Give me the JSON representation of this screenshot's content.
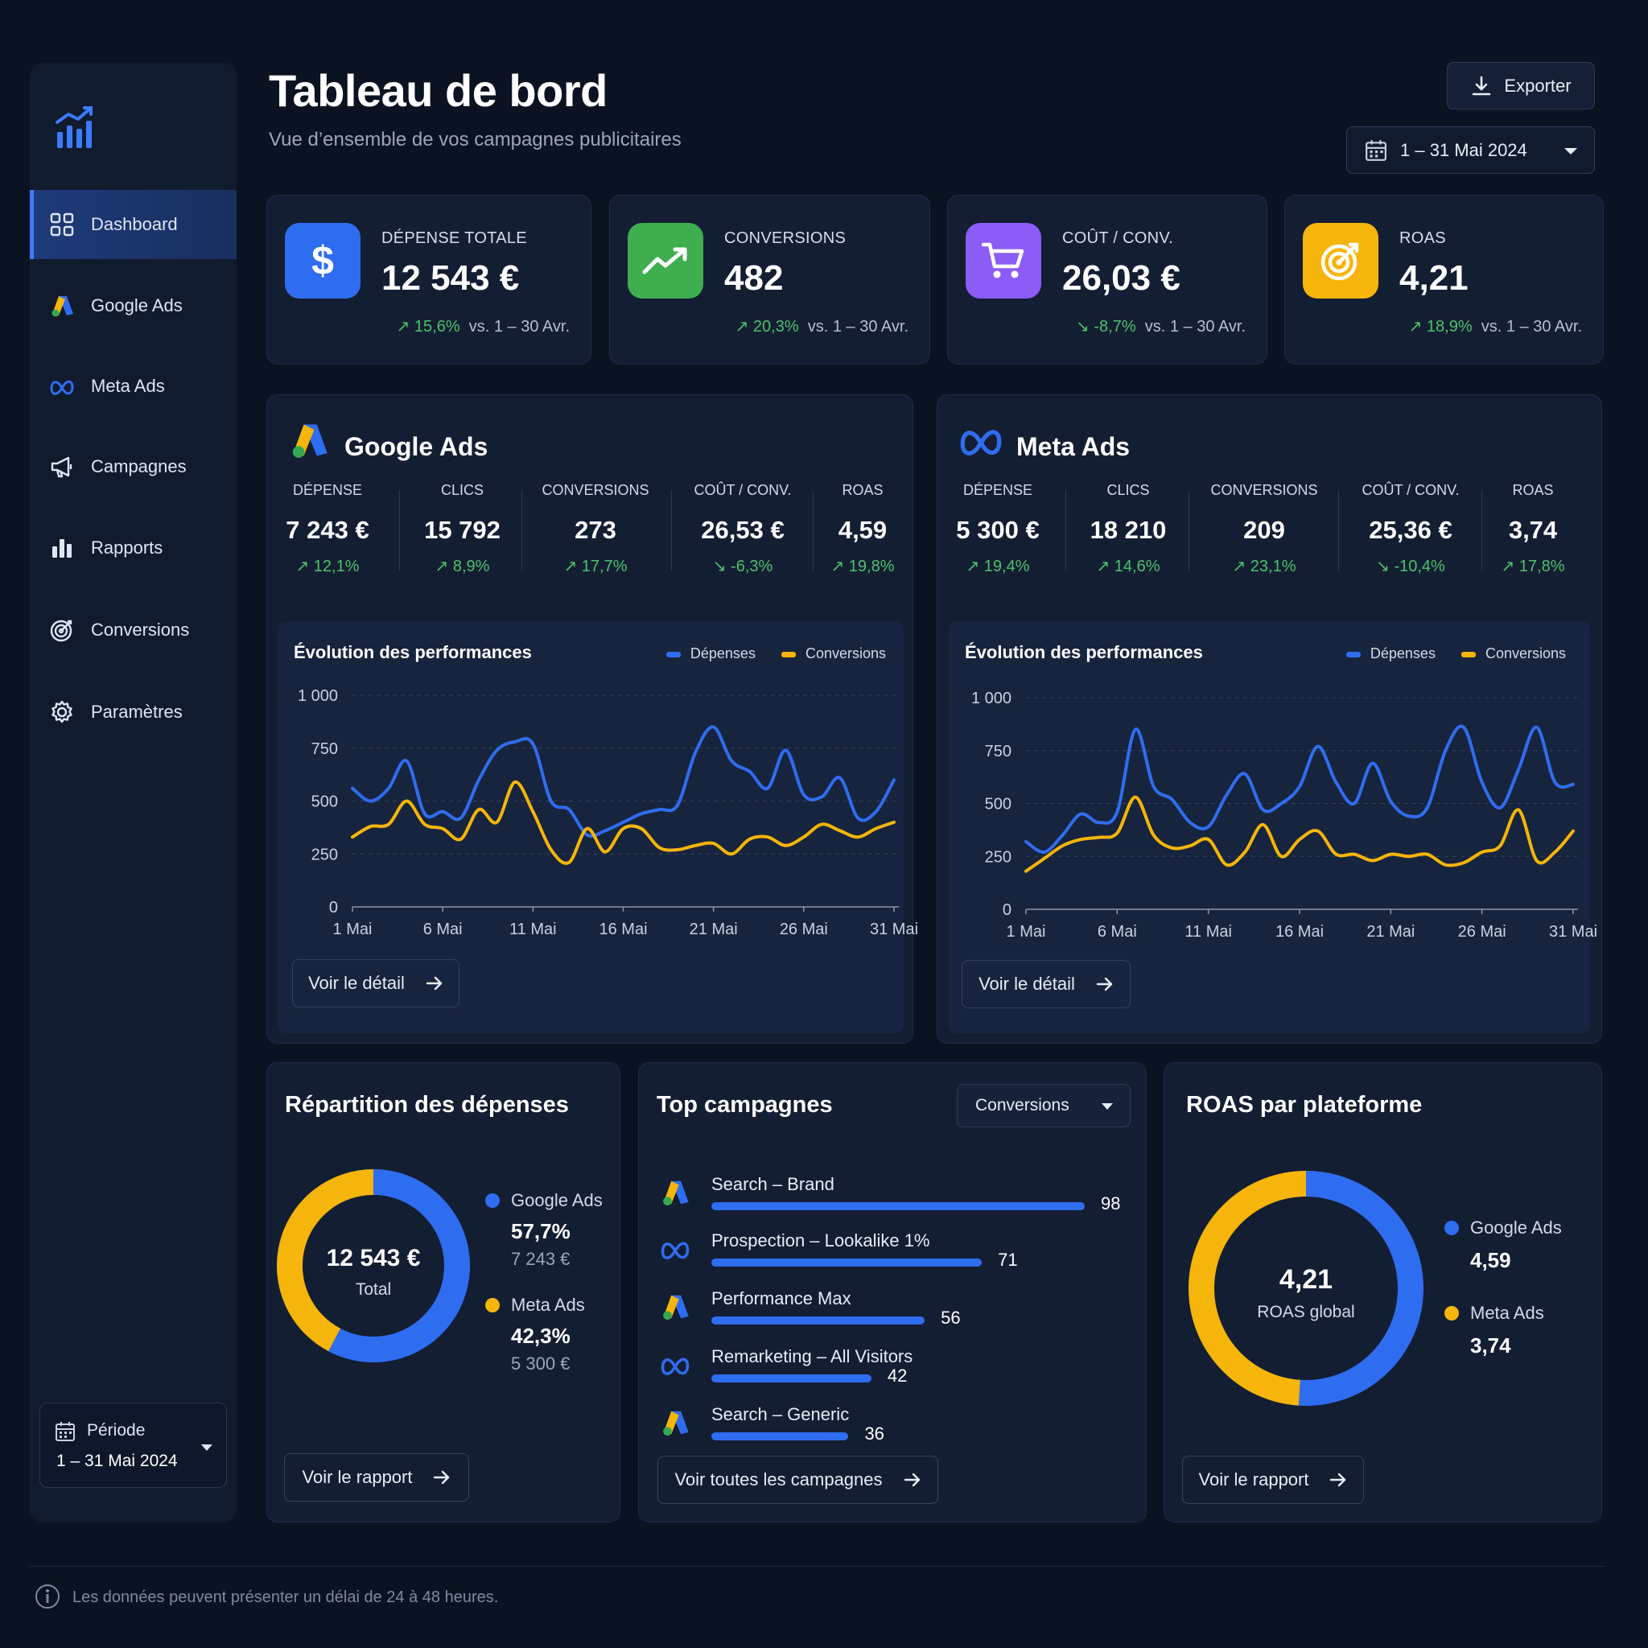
{
  "header": {
    "title": "Tableau de bord",
    "subtitle": "Vue d’ensemble de vos campagnes publicitaires",
    "export_label": "Exporter",
    "date_range": "1 – 31 Mai 2024"
  },
  "sidebar": {
    "items": [
      {
        "label": "Dashboard",
        "icon": "grid-icon",
        "active": true
      },
      {
        "label": "Google Ads",
        "icon": "google-ads-icon"
      },
      {
        "label": "Meta Ads",
        "icon": "meta-icon"
      },
      {
        "label": "Campagnes",
        "icon": "megaphone-icon"
      },
      {
        "label": "Rapports",
        "icon": "bar-chart-icon"
      },
      {
        "label": "Conversions",
        "icon": "target-icon"
      },
      {
        "label": "Paramètres",
        "icon": "gear-icon"
      }
    ],
    "period_label": "Période",
    "period_value": "1 – 31 Mai 2024"
  },
  "kpis": [
    {
      "label": "DÉPENSE TOTALE",
      "value": "12 543 €",
      "delta": "15,6%",
      "direction": "up",
      "compare": "vs. 1 – 30 Avr.",
      "icon": "dollar-icon",
      "color": "#2f6df0"
    },
    {
      "label": "CONVERSIONS",
      "value": "482",
      "delta": "20,3%",
      "direction": "up",
      "compare": "vs. 1 – 30 Avr.",
      "icon": "trend-up-icon",
      "color": "#3fae4f"
    },
    {
      "label": "COÛT / CONV.",
      "value": "26,03 €",
      "delta": "-8,7%",
      "direction": "down",
      "compare": "vs. 1 – 30 Avr.",
      "icon": "cart-icon",
      "color": "#8b5cf6"
    },
    {
      "label": "ROAS",
      "value": "4,21",
      "delta": "18,9%",
      "direction": "up",
      "compare": "vs. 1 – 30 Avr.",
      "icon": "target-icon",
      "color": "#f5b50a"
    }
  ],
  "google": {
    "title": "Google Ads",
    "metrics": [
      {
        "label": "DÉPENSE",
        "value": "7 243 €",
        "delta": "↗ 12,1%"
      },
      {
        "label": "CLICS",
        "value": "15 792",
        "delta": "↗ 8,9%"
      },
      {
        "label": "CONVERSIONS",
        "value": "273",
        "delta": "↗ 17,7%"
      },
      {
        "label": "COÛT / CONV.",
        "value": "26,53 €",
        "delta": "↘ -6,3%"
      },
      {
        "label": "ROAS",
        "value": "4,59",
        "delta": "↗ 19,8%"
      }
    ],
    "chart_title": "Évolution des performances",
    "button": "Voir le détail"
  },
  "meta": {
    "title": "Meta Ads",
    "metrics": [
      {
        "label": "DÉPENSE",
        "value": "5 300 €",
        "delta": "↗ 19,4%"
      },
      {
        "label": "CLICS",
        "value": "18 210",
        "delta": "↗ 14,6%"
      },
      {
        "label": "CONVERSIONS",
        "value": "209",
        "delta": "↗ 23,1%"
      },
      {
        "label": "COÛT / CONV.",
        "value": "25,36 €",
        "delta": "↘ -10,4%"
      },
      {
        "label": "ROAS",
        "value": "3,74",
        "delta": "↗ 17,8%"
      }
    ],
    "chart_title": "Évolution des performances",
    "button": "Voir le détail"
  },
  "chart_data": [
    {
      "type": "line",
      "title": "Évolution des performances",
      "x": [
        "1 Mai",
        "2 Mai",
        "3 Mai",
        "4 Mai",
        "5 Mai",
        "6 Mai",
        "7 Mai",
        "8 Mai",
        "9 Mai",
        "10 Mai",
        "11 Mai",
        "12 Mai",
        "13 Mai",
        "14 Mai",
        "15 Mai",
        "16 Mai",
        "17 Mai",
        "18 Mai",
        "19 Mai",
        "20 Mai",
        "21 Mai",
        "22 Mai",
        "23 Mai",
        "24 Mai",
        "25 Mai",
        "26 Mai",
        "27 Mai",
        "28 Mai",
        "29 Mai",
        "30 Mai",
        "31 Mai"
      ],
      "xticks": [
        "1 Mai",
        "6 Mai",
        "11 Mai",
        "16 Mai",
        "21 Mai",
        "26 Mai",
        "31 Mai"
      ],
      "yticks": [
        "0",
        "250",
        "500",
        "750",
        "1 000"
      ],
      "ylim": [
        0,
        1000
      ],
      "series": [
        {
          "name": "Dépenses",
          "color": "#2f6df0",
          "values": [
            560,
            500,
            560,
            690,
            440,
            450,
            420,
            600,
            740,
            780,
            770,
            500,
            460,
            340,
            360,
            400,
            440,
            460,
            480,
            730,
            850,
            690,
            640,
            560,
            740,
            530,
            520,
            610,
            420,
            450,
            600
          ]
        },
        {
          "name": "Conversions",
          "color": "#f5b50a",
          "values": [
            330,
            380,
            390,
            500,
            390,
            370,
            320,
            460,
            400,
            590,
            450,
            270,
            210,
            370,
            260,
            370,
            370,
            280,
            270,
            290,
            300,
            250,
            320,
            330,
            290,
            330,
            390,
            360,
            330,
            370,
            400
          ]
        }
      ]
    },
    {
      "type": "line",
      "title": "Évolution des performances",
      "x": [
        "1 Mai",
        "2 Mai",
        "3 Mai",
        "4 Mai",
        "5 Mai",
        "6 Mai",
        "7 Mai",
        "8 Mai",
        "9 Mai",
        "10 Mai",
        "11 Mai",
        "12 Mai",
        "13 Mai",
        "14 Mai",
        "15 Mai",
        "16 Mai",
        "17 Mai",
        "18 Mai",
        "19 Mai",
        "20 Mai",
        "21 Mai",
        "22 Mai",
        "23 Mai",
        "24 Mai",
        "25 Mai",
        "26 Mai",
        "27 Mai",
        "28 Mai",
        "29 Mai",
        "30 Mai",
        "31 Mai"
      ],
      "xticks": [
        "1 Mai",
        "6 Mai",
        "11 Mai",
        "16 Mai",
        "21 Mai",
        "26 Mai",
        "31 Mai"
      ],
      "yticks": [
        "0",
        "250",
        "500",
        "750",
        "1 000"
      ],
      "ylim": [
        0,
        1000
      ],
      "series": [
        {
          "name": "Dépenses",
          "color": "#2f6df0",
          "values": [
            320,
            270,
            350,
            450,
            410,
            460,
            850,
            580,
            520,
            410,
            390,
            540,
            640,
            470,
            500,
            580,
            770,
            600,
            500,
            690,
            510,
            440,
            480,
            750,
            860,
            600,
            480,
            660,
            860,
            600,
            590
          ]
        },
        {
          "name": "Conversions",
          "color": "#f5b50a",
          "values": [
            180,
            240,
            300,
            330,
            340,
            360,
            530,
            350,
            290,
            300,
            330,
            210,
            270,
            400,
            250,
            330,
            370,
            260,
            260,
            230,
            260,
            250,
            260,
            210,
            220,
            270,
            300,
            470,
            230,
            270,
            370
          ]
        }
      ]
    }
  ],
  "legend": {
    "spend": "Dépenses",
    "conversions": "Conversions"
  },
  "repartition": {
    "title": "Répartition des dépenses",
    "total_value": "12 543 €",
    "total_label": "Total",
    "items": [
      {
        "name": "Google Ads",
        "pct": "57,7%",
        "amount": "7 243 €",
        "share": 0.577,
        "color": "#2f6df0"
      },
      {
        "name": "Meta Ads",
        "pct": "42,3%",
        "amount": "5 300 €",
        "share": 0.423,
        "color": "#f5b50a"
      }
    ],
    "button": "Voir le rapport"
  },
  "top_campaigns": {
    "title": "Top campagnes",
    "sort": "Conversions",
    "max": 98,
    "items": [
      {
        "name": "Search – Brand",
        "value": "98",
        "num": 98,
        "platform": "google"
      },
      {
        "name": "Prospection – Lookalike 1%",
        "value": "71",
        "num": 71,
        "platform": "meta"
      },
      {
        "name": "Performance Max",
        "value": "56",
        "num": 56,
        "platform": "google"
      },
      {
        "name": "Remarketing – All Visitors",
        "value": "42",
        "num": 42,
        "platform": "meta"
      },
      {
        "name": "Search – Generic",
        "value": "36",
        "num": 36,
        "platform": "google"
      }
    ],
    "button": "Voir toutes les campagnes"
  },
  "roas_platform": {
    "title": "ROAS par plateforme",
    "center_value": "4,21",
    "center_label": "ROAS global",
    "items": [
      {
        "name": "Google Ads",
        "value": "4,59",
        "share": 0.51,
        "color": "#2f6df0"
      },
      {
        "name": "Meta Ads",
        "value": "3,74",
        "share": 0.49,
        "color": "#f5b50a"
      }
    ],
    "button": "Voir le rapport"
  },
  "footer": {
    "note": "Les données peuvent présenter un délai de 24 à 48 heures."
  }
}
